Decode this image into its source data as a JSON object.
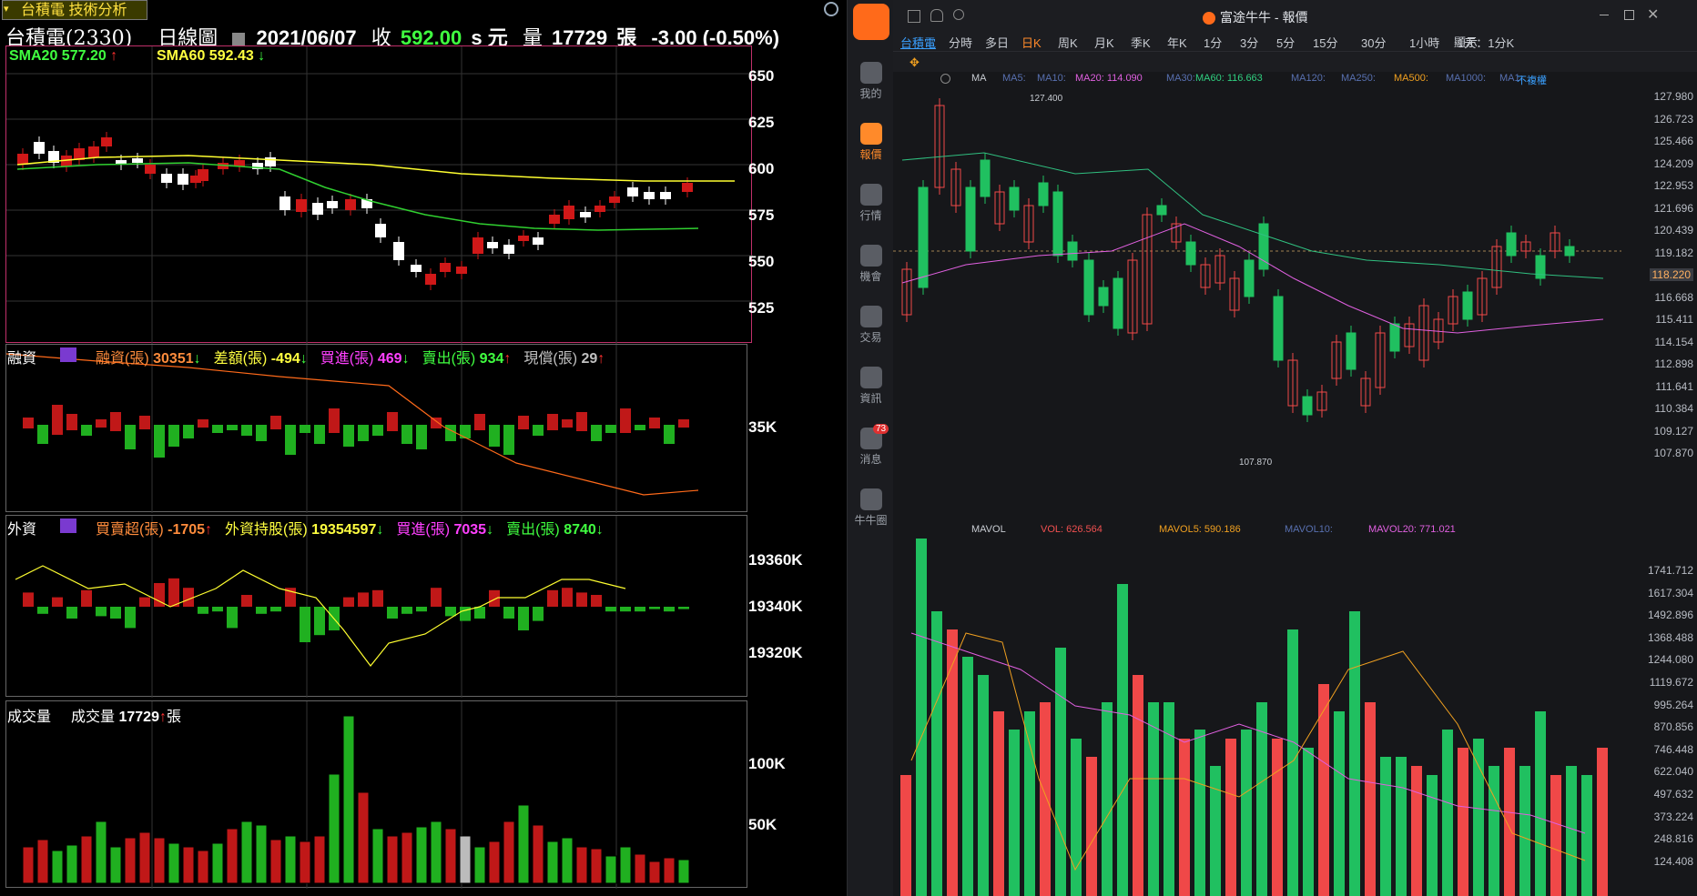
{
  "left": {
    "tab_title": "台積電 技術分析",
    "header": {
      "stock": "台積電(2330)",
      "chart_type": "日線圖",
      "date": "2021/06/07",
      "close_label": "收",
      "close_value": "592.00",
      "close_unit": "s 元",
      "volume_label": "量",
      "volume_value": "17729",
      "volume_unit": "張",
      "change": "-3.00 (-0.50%)"
    },
    "price_panel": {
      "sma20": "SMA20 577.20",
      "sma60": "SMA60 592.43",
      "y_ticks": [
        "650",
        "625",
        "600",
        "575",
        "550",
        "525"
      ]
    },
    "margin_panel": {
      "title": "融資",
      "items": [
        {
          "label": "融資(張)",
          "value": "30351",
          "dir": "down",
          "color": "#ff8c3c"
        },
        {
          "label": "差額(張)",
          "value": "-494",
          "dir": "down",
          "color": "#ffff40"
        },
        {
          "label": "買進(張)",
          "value": "469",
          "dir": "down",
          "color": "#ff40ff"
        },
        {
          "label": "賣出(張)",
          "value": "934",
          "dir": "up",
          "color": "#40ff40"
        },
        {
          "label": "現償(張)",
          "value": "29",
          "dir": "up",
          "color": "#c0c0c0"
        }
      ],
      "y_ticks": [
        "35K"
      ]
    },
    "foreign_panel": {
      "title": "外資",
      "items": [
        {
          "label": "買賣超(張)",
          "value": "-1705",
          "dir": "up",
          "color": "#ff8c3c"
        },
        {
          "label": "外資持股(張)",
          "value": "19354597",
          "dir": "down",
          "color": "#ffff40"
        },
        {
          "label": "買進(張)",
          "value": "7035",
          "dir": "down",
          "color": "#ff40ff"
        },
        {
          "label": "賣出(張)",
          "value": "8740",
          "dir": "down",
          "color": "#40ff40"
        }
      ],
      "y_ticks": [
        "19360K",
        "19340K",
        "19320K"
      ]
    },
    "volume_panel": {
      "title": "成交量",
      "label": "成交量",
      "value": "17729",
      "unit": "張",
      "y_ticks": [
        "100K",
        "50K"
      ]
    }
  },
  "sidebar": {
    "items": [
      {
        "label": "我的",
        "icon": "user-icon"
      },
      {
        "label": "報價",
        "icon": "quote-icon",
        "active": true
      },
      {
        "label": "行情",
        "icon": "market-icon"
      },
      {
        "label": "機會",
        "icon": "opportunity-icon"
      },
      {
        "label": "交易",
        "icon": "trade-icon"
      },
      {
        "label": "資訊",
        "icon": "news-icon"
      },
      {
        "label": "消息",
        "icon": "message-icon",
        "badge": "73"
      },
      {
        "label": "牛牛圈",
        "icon": "community-icon"
      }
    ]
  },
  "right": {
    "window_title": "富途牛牛 - 報價",
    "periods": [
      "台積電",
      "分時",
      "多日",
      "日K",
      "周K",
      "月K",
      "季K",
      "年K",
      "1分",
      "3分",
      "5分",
      "15分",
      "30分",
      "1小時",
      "1天：1分K"
    ],
    "active_period": "日K",
    "display_label": "顯示",
    "ma_bar": {
      "ma_label": "MA",
      "items": [
        "MA5:",
        "MA10:",
        "MA20: 114.090",
        "MA30:",
        "MA60: 116.663",
        "MA120:",
        "MA250:",
        "MA500:",
        "MA1000:",
        "MA1:"
      ],
      "adjust": "不複權"
    },
    "price_axis": [
      "127.980",
      "126.723",
      "125.466",
      "124.209",
      "122.953",
      "121.696",
      "120.439",
      "119.182",
      "118.220",
      "116.668",
      "115.411",
      "114.154",
      "112.898",
      "111.641",
      "110.384",
      "109.127",
      "107.870"
    ],
    "current_price": "118.220",
    "high_label": "127.400",
    "low_label": "107.870",
    "vol_bar": {
      "label": "MAVOL",
      "vol": "VOL: 626.564",
      "mavol5": "MAVOL5: 590.186",
      "mavol10": "MAVOL10:",
      "mavol20": "MAVOL20: 771.021"
    },
    "vol_axis": [
      "1741.712",
      "1617.304",
      "1492.896",
      "1368.488",
      "1244.080",
      "1119.672",
      "995.264",
      "870.856",
      "746.448",
      "622.040",
      "497.632",
      "373.224",
      "248.816",
      "124.408"
    ]
  }
}
